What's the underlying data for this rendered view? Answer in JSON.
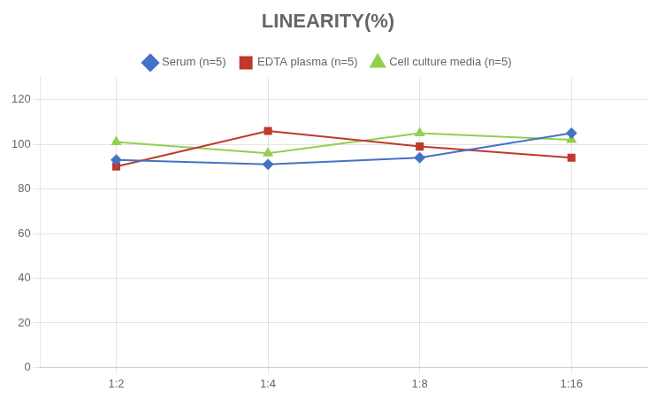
{
  "chart_data": {
    "type": "line",
    "title": "LINEARITY(%)",
    "categories": [
      "1:2",
      "1:4",
      "1:8",
      "1:16"
    ],
    "series": [
      {
        "name": "Serum (n=5)",
        "color": "#4472C4",
        "marker": "diamond",
        "values": [
          93,
          91,
          94,
          105
        ]
      },
      {
        "name": "EDTA plasma (n=5)",
        "color": "#C0392B",
        "marker": "square",
        "values": [
          90,
          106,
          99,
          94
        ]
      },
      {
        "name": "Cell culture media (n=5)",
        "color": "#92D050",
        "marker": "triangle",
        "values": [
          101,
          96,
          105,
          102
        ]
      }
    ],
    "ylim": [
      0,
      130
    ],
    "yticks": [
      0,
      20,
      40,
      60,
      80,
      100,
      120
    ],
    "grid": true,
    "legend": "top"
  }
}
